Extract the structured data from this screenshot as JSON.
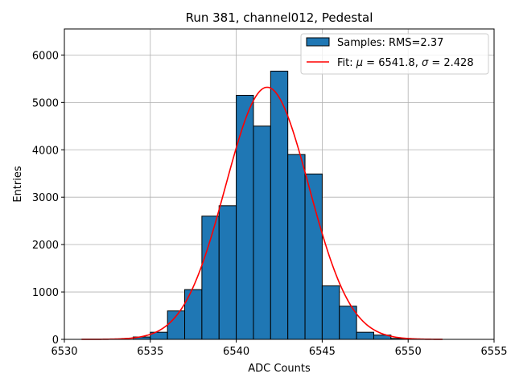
{
  "chart_data": {
    "type": "bar",
    "title": "Run 381, channel012, Pedestal",
    "xlabel": "ADC Counts",
    "ylabel": "Entries",
    "xlim": [
      6530,
      6555
    ],
    "ylim": [
      0,
      6550
    ],
    "xticks": [
      6530,
      6535,
      6540,
      6545,
      6550,
      6555
    ],
    "yticks": [
      0,
      1000,
      2000,
      3000,
      4000,
      5000,
      6000
    ],
    "grid": true,
    "legend_position": "top-right",
    "histogram": {
      "name": "Samples: RMS=2.37",
      "color": "#1f77b4",
      "edge_color": "#000000",
      "bin_edges": [
        6531,
        6532,
        6533,
        6534,
        6535,
        6536,
        6537,
        6538,
        6539,
        6540,
        6541,
        6542,
        6543,
        6544,
        6545,
        6546,
        6547,
        6548,
        6549,
        6550,
        6551,
        6552
      ],
      "counts": [
        0,
        0,
        0,
        50,
        150,
        600,
        1050,
        2600,
        2820,
        5150,
        4500,
        5660,
        3900,
        3490,
        1130,
        700,
        150,
        90,
        20,
        0,
        0
      ]
    },
    "fit": {
      "name_prefix": "Fit: ",
      "name_mu": "μ",
      "name_mid": " = 6541.8, ",
      "name_sigma": "σ",
      "name_suffix": " = 2.428",
      "color": "#ff0000",
      "mu": 6541.8,
      "sigma": 2.428,
      "amplitude": 5320,
      "x_range": [
        6531,
        6552
      ]
    }
  }
}
